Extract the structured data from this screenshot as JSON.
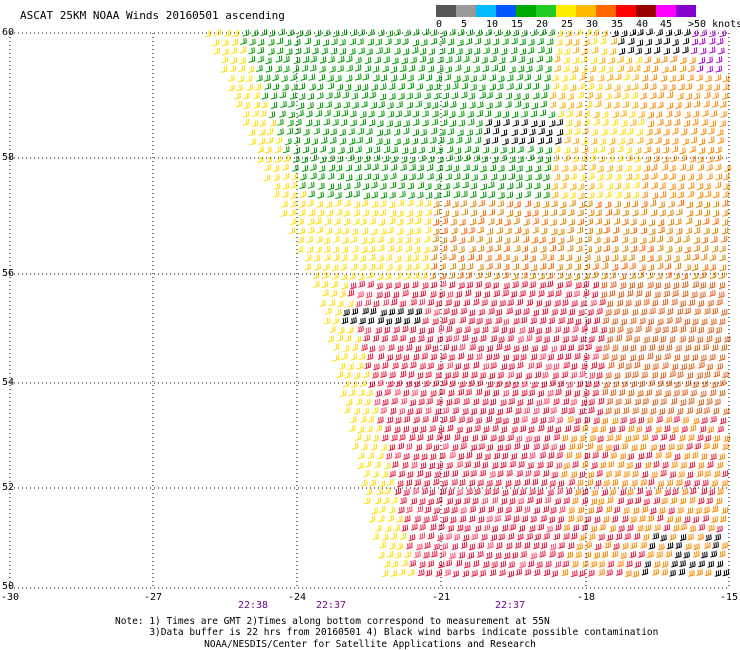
{
  "title": "ASCAT 25KM NOAA Winds 20160501 ascending",
  "legend": {
    "ticks": [
      "0",
      "5",
      "10",
      "15",
      "20",
      "25",
      "30",
      "35",
      "40",
      "45"
    ],
    "max_label": ">50 knots",
    "colors": [
      "#555555",
      "#999999",
      "#00bbff",
      "#0055ff",
      "#00aa00",
      "#22cc22",
      "#ffee00",
      "#ffbb00",
      "#ff6600",
      "#ff0000",
      "#990000",
      "#ff00ff",
      "#8800cc"
    ]
  },
  "lat_labels": [
    "60",
    "58",
    "56",
    "54",
    "52",
    "50"
  ],
  "lon_labels": [
    "-30",
    "-27",
    "-24",
    "-21",
    "-18",
    "-15"
  ],
  "time_labels": [
    "22:38",
    "22:37",
    "22:37"
  ],
  "notes": {
    "line1": "Note: 1) Times are GMT 2)Times along bottom correspond to measurement at 55N",
    "line2": "      3)Data buffer is 22 hrs from 20160501 4) Black wind barbs indicate possible contamination"
  },
  "credit": "NOAA/NESDIS/Center for Satellite Applications and Research",
  "map": {
    "lat_range": [
      50,
      60
    ],
    "lon_range": [
      -30,
      -15
    ],
    "grid": "dotted",
    "wind_field": {
      "swath": "ascending pass, covering the eastern part of the map",
      "regions": [
        {
          "area": "north (57-60N)",
          "speed_knots": "15-20",
          "color": "#009900"
        },
        {
          "area": "swath edge and 56-57N band",
          "speed_knots": "20-25",
          "color": "#ffee00"
        },
        {
          "area": "central/south (50-56N)",
          "speed_knots": "30-40",
          "color": "#e6183c"
        },
        {
          "area": "east side",
          "speed_knots": "25-35",
          "color": "#ff8800"
        },
        {
          "area": "northeast corner",
          "speed_knots": ">45",
          "color": "#aa00cc"
        },
        {
          "area": "scattered contaminated barbs",
          "speed_knots": "n/a",
          "color": "#000000"
        }
      ]
    }
  }
}
